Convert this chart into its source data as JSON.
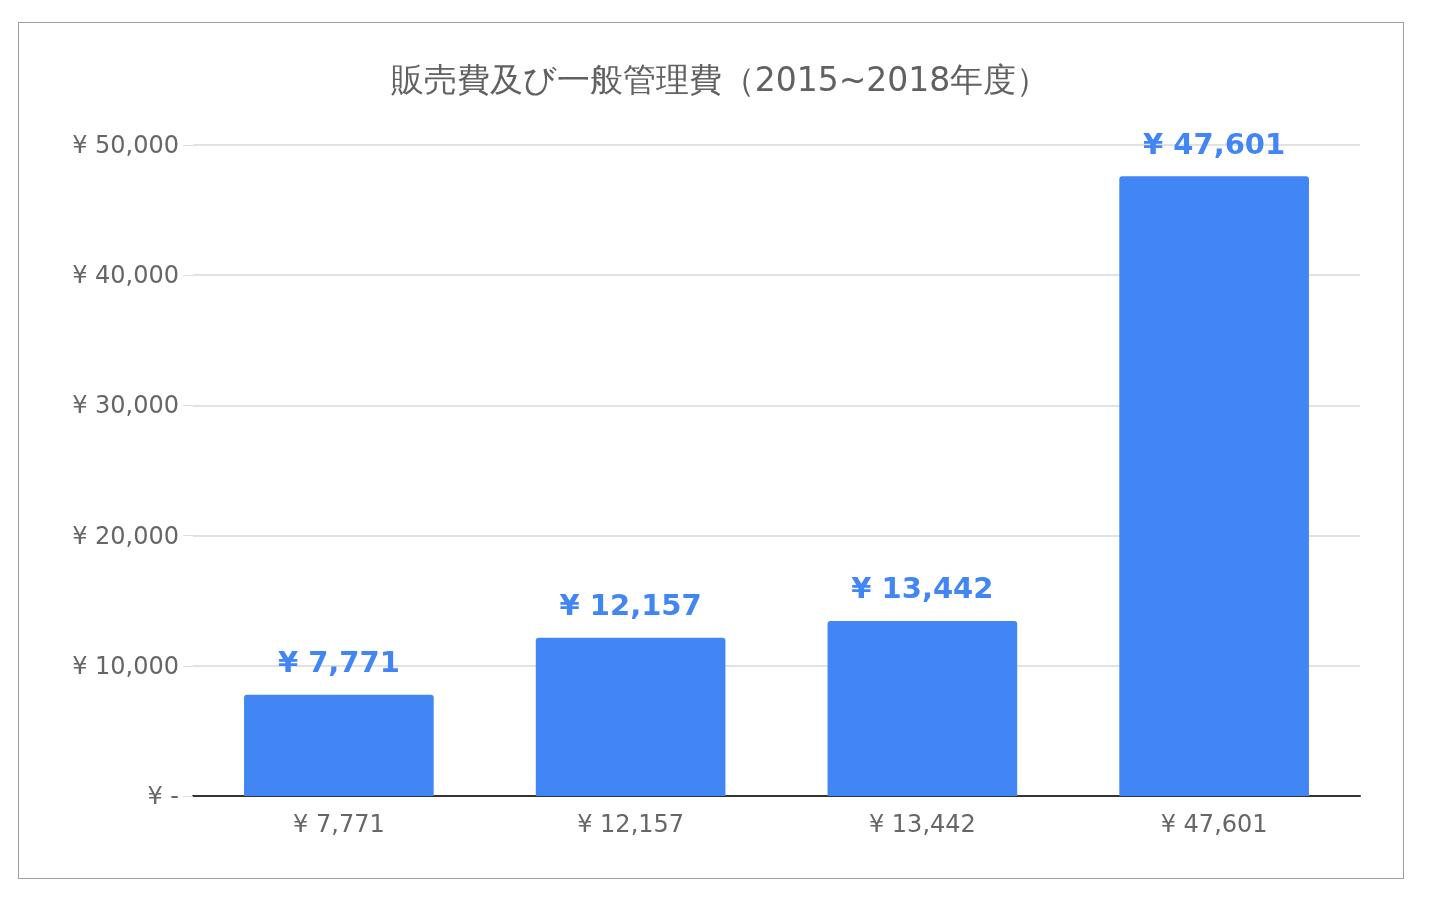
{
  "chart_data": {
    "type": "bar",
    "title": "販売費及び一般管理費（2015~2018年度）",
    "categories": [
      "¥ 7,771",
      "¥ 12,157",
      "¥ 13,442",
      "¥ 47,601"
    ],
    "values": [
      7771,
      12157,
      13442,
      47601
    ],
    "value_labels": [
      "¥ 7,771",
      "¥ 12,157",
      "¥ 13,442",
      "¥ 47,601"
    ],
    "color": "#4285f4",
    "ylim": [
      0,
      50000
    ],
    "yticks": [
      {
        "value": 0,
        "label": "¥ -"
      },
      {
        "value": 10000,
        "label": "¥ 10,000"
      },
      {
        "value": 20000,
        "label": "¥ 20,000"
      },
      {
        "value": 30000,
        "label": "¥ 30,000"
      },
      {
        "value": 40000,
        "label": "¥ 40,000"
      },
      {
        "value": 50000,
        "label": "¥ 50,000"
      }
    ],
    "grid": "y"
  }
}
